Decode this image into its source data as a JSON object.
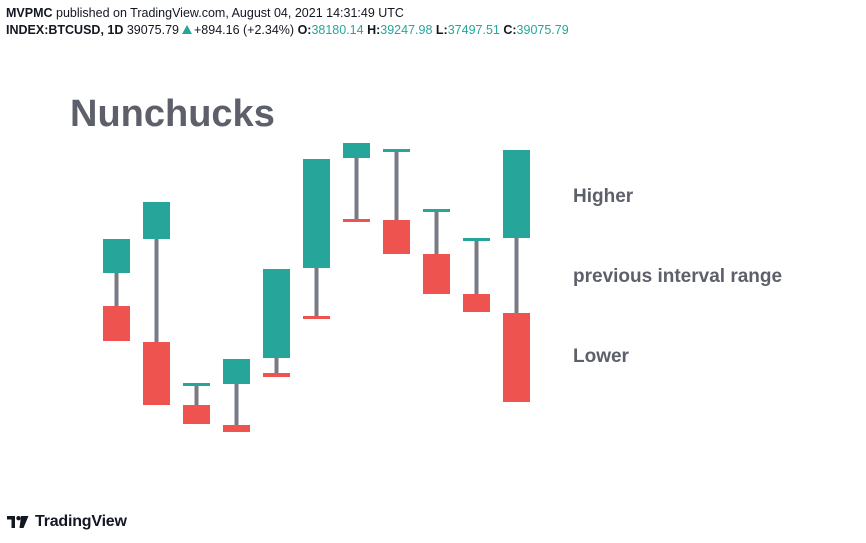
{
  "header": {
    "author": "MVPMC",
    "published": "published on TradingView.com, August 04, 2021 14:31:49 UTC",
    "symbol": "INDEX:BTCUSD, 1D",
    "price": "39075.79",
    "change": "+894.16 (+2.34%)",
    "o_label": "O:",
    "o_value": "38180.14",
    "h_label": "H:",
    "h_value": "39247.98",
    "l_label": "L:",
    "l_value": "37497.51",
    "c_label": "C:",
    "c_value": "39075.79"
  },
  "footer": {
    "brand": "TradingView"
  },
  "colors": {
    "up": "#26a69a",
    "down": "#ef5350",
    "wick": "#787b86",
    "title": "#5d606b",
    "annotation": "#5d606b"
  },
  "chart_data": {
    "type": "candlestick-illustration",
    "title": "Nunchucks",
    "annotations": [
      "Higher",
      "previous interval range",
      "Lower"
    ],
    "y_scale": "relative (no price axis shown)",
    "candles": [
      {
        "pairs": [
          {
            "color": "up",
            "top": 239,
            "bottom": 273
          },
          {
            "color": "down",
            "top": 306,
            "bottom": 341
          }
        ]
      },
      {
        "pairs": [
          {
            "color": "up",
            "top": 202,
            "bottom": 239
          },
          {
            "color": "down",
            "top": 342,
            "bottom": 405
          }
        ]
      },
      {
        "pairs": [
          {
            "color": "up",
            "top": 383,
            "bottom": 386
          },
          {
            "color": "down",
            "top": 405,
            "bottom": 424
          }
        ]
      },
      {
        "pairs": [
          {
            "color": "up",
            "top": 359,
            "bottom": 384
          },
          {
            "color": "down",
            "top": 425,
            "bottom": 432
          }
        ]
      },
      {
        "pairs": [
          {
            "color": "up",
            "top": 269,
            "bottom": 358
          },
          {
            "color": "down",
            "top": 373,
            "bottom": 377
          }
        ]
      },
      {
        "pairs": [
          {
            "color": "up",
            "top": 159,
            "bottom": 268
          },
          {
            "color": "down",
            "top": 316,
            "bottom": 319
          }
        ]
      },
      {
        "pairs": [
          {
            "color": "up",
            "top": 143,
            "bottom": 158
          },
          {
            "color": "down",
            "top": 219,
            "bottom": 222
          }
        ]
      },
      {
        "pairs": [
          {
            "color": "up",
            "top": 149,
            "bottom": 152
          },
          {
            "color": "down",
            "top": 220,
            "bottom": 254
          }
        ]
      },
      {
        "pairs": [
          {
            "color": "up",
            "top": 209,
            "bottom": 212
          },
          {
            "color": "down",
            "top": 254,
            "bottom": 294
          }
        ]
      },
      {
        "pairs": [
          {
            "color": "up",
            "top": 238,
            "bottom": 241
          },
          {
            "color": "down",
            "top": 294,
            "bottom": 312
          }
        ]
      },
      {
        "pairs": [
          {
            "color": "up",
            "top": 150,
            "bottom": 238
          },
          {
            "color": "down",
            "top": 313,
            "bottom": 402
          }
        ]
      }
    ]
  }
}
